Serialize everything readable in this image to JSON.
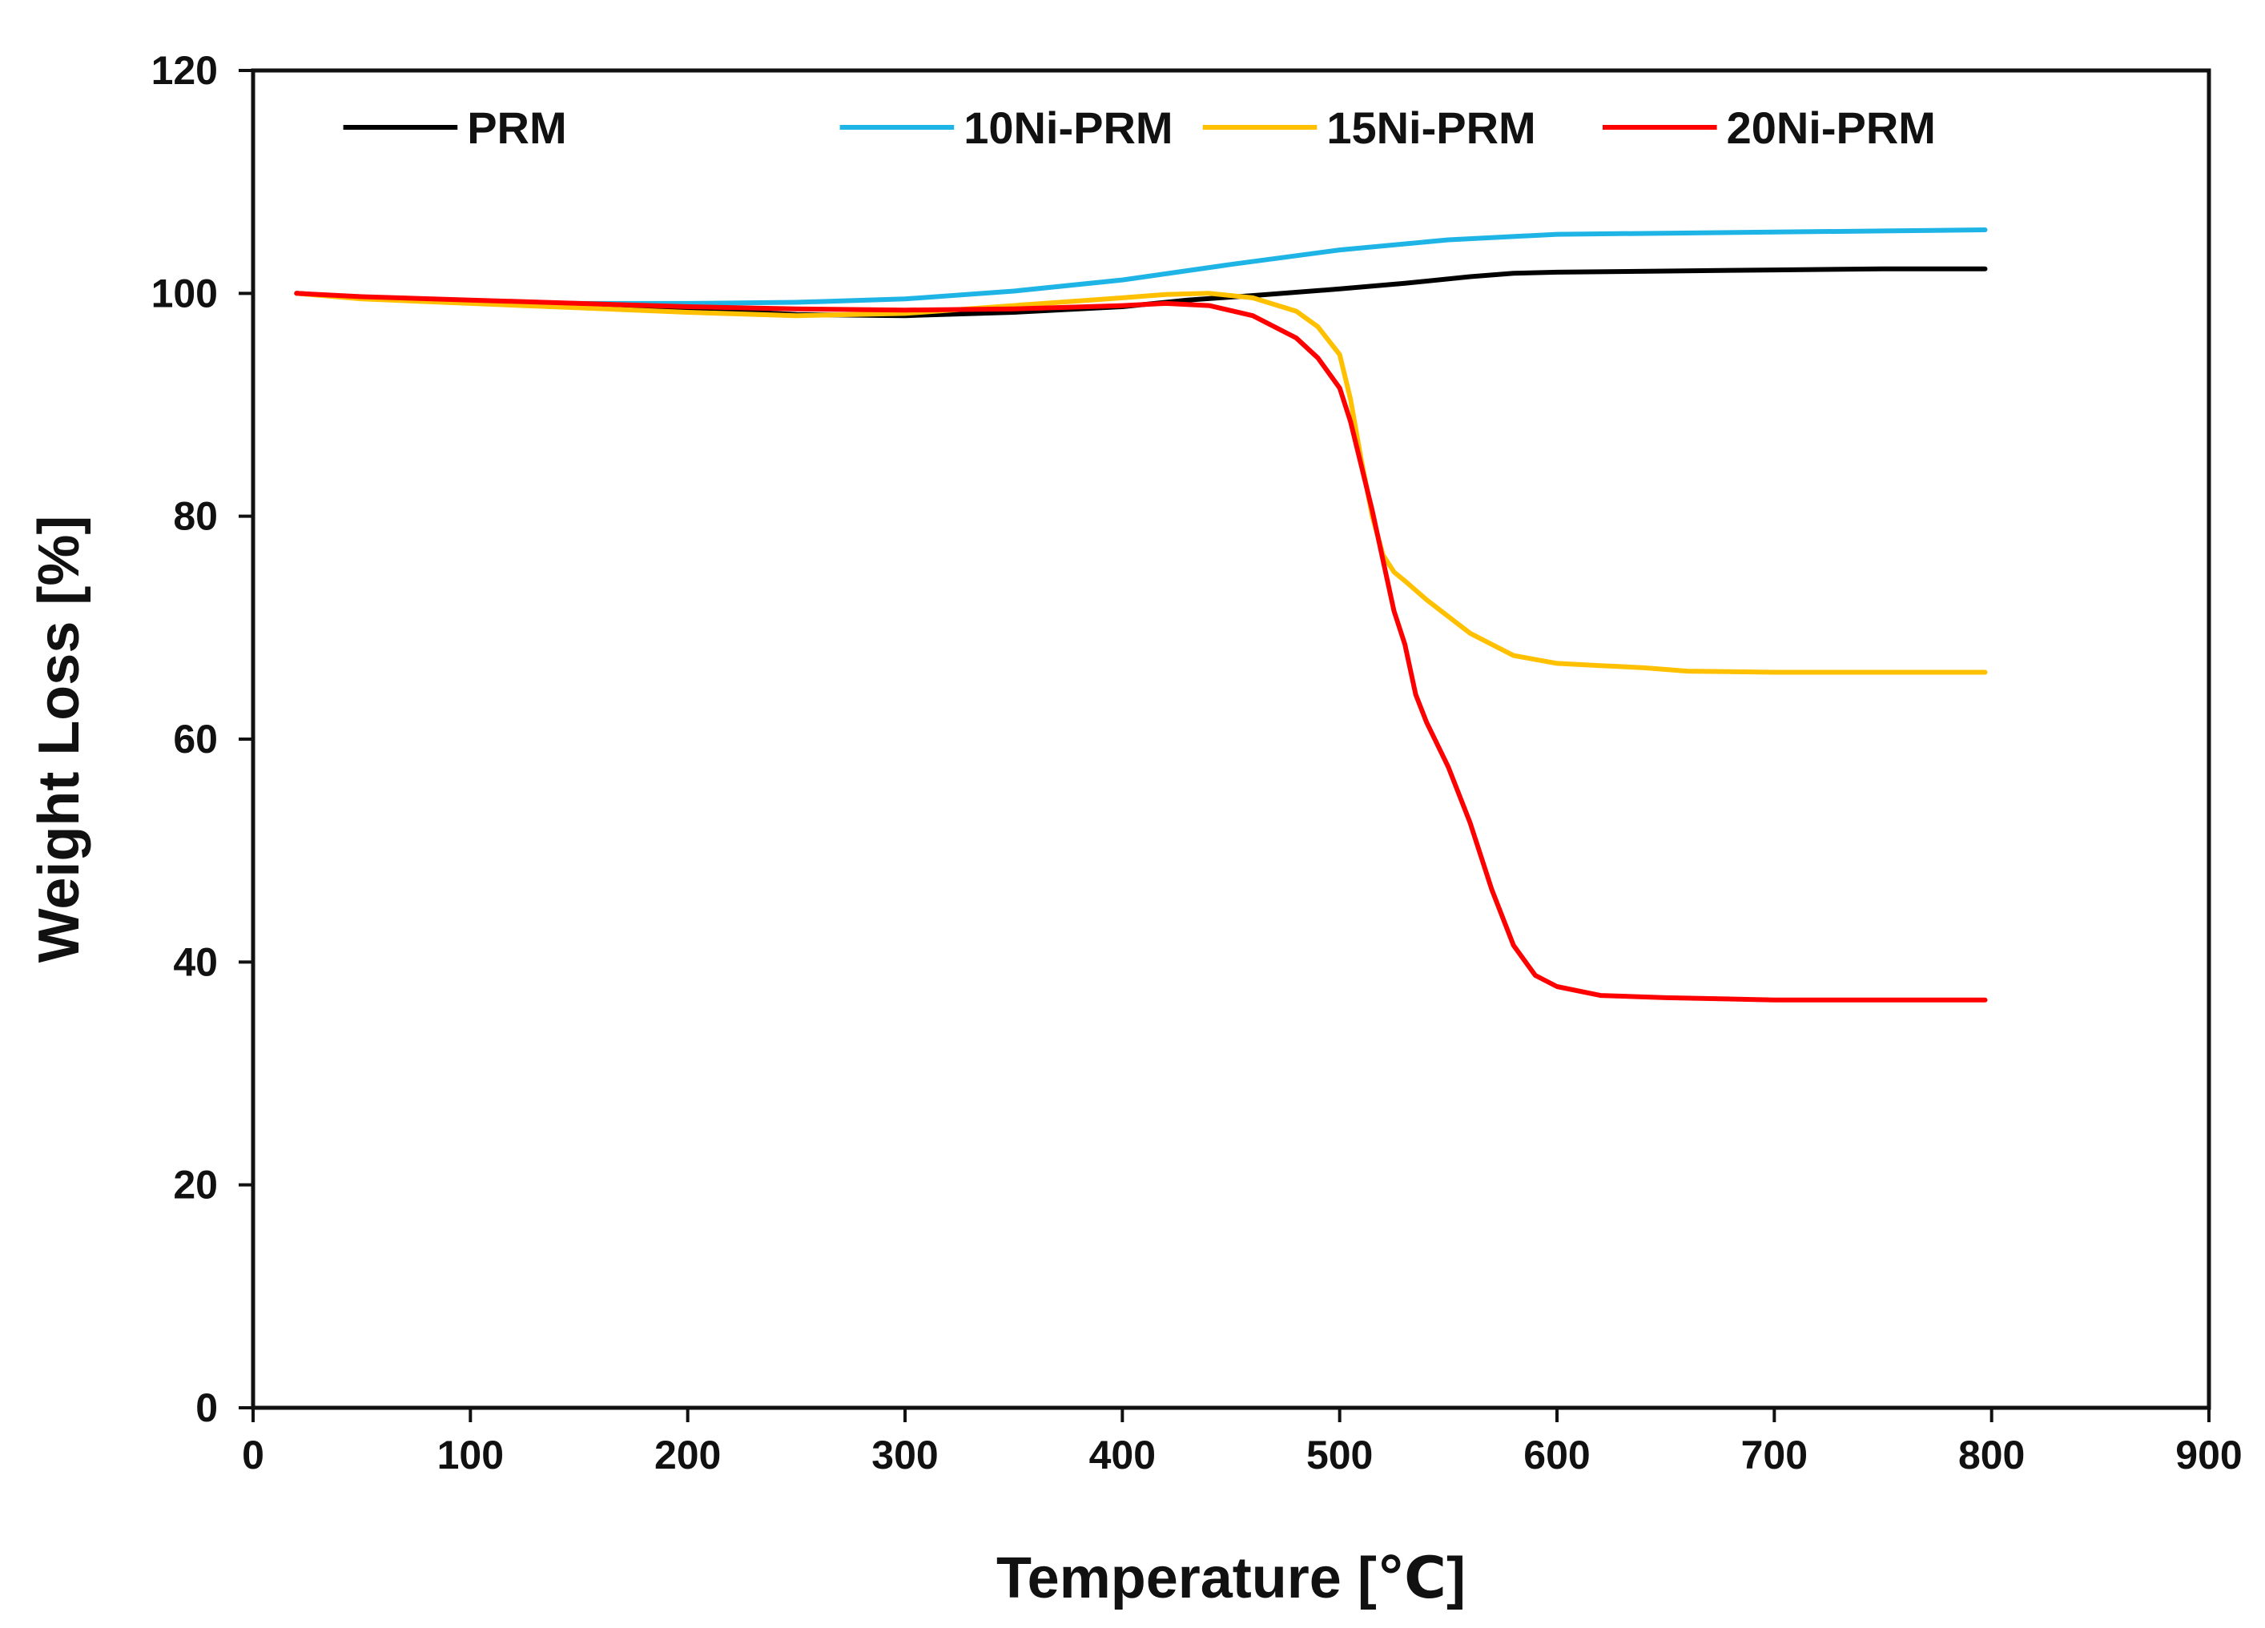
{
  "chart_data": {
    "type": "line",
    "title": "",
    "xlabel": "Temperature [℃]",
    "ylabel": "Weight Loss [%]",
    "xlim": [
      0,
      900
    ],
    "ylim": [
      0,
      120
    ],
    "xticks": [
      0,
      100,
      200,
      300,
      400,
      500,
      600,
      700,
      800,
      900
    ],
    "yticks": [
      0,
      20,
      40,
      60,
      80,
      100,
      120
    ],
    "xtick_labels": [
      "0",
      "100",
      "200",
      "300",
      "400",
      "500",
      "600",
      "700",
      "800",
      "900"
    ],
    "ytick_labels": [
      "0",
      "20",
      "40",
      "60",
      "80",
      "100",
      "120"
    ],
    "grid": false,
    "legend_position": "top",
    "series": [
      {
        "name": "PRM",
        "color": "#000000",
        "x": [
          20,
          50,
          100,
          150,
          200,
          250,
          300,
          350,
          400,
          430,
          460,
          500,
          530,
          560,
          580,
          600,
          650,
          700,
          750,
          797
        ],
        "y": [
          100.0,
          99.6,
          99.3,
          99.0,
          98.6,
          98.1,
          98.0,
          98.3,
          98.8,
          99.4,
          99.8,
          100.4,
          100.9,
          101.5,
          101.8,
          101.9,
          102.0,
          102.1,
          102.2,
          102.2
        ]
      },
      {
        "name": "10Ni-PRM",
        "color": "#1eb4e6",
        "x": [
          20,
          50,
          100,
          150,
          200,
          250,
          300,
          350,
          400,
          450,
          500,
          550,
          600,
          650,
          700,
          750,
          797
        ],
        "y": [
          100.0,
          99.6,
          99.3,
          99.1,
          99.1,
          99.2,
          99.5,
          100.2,
          101.2,
          102.6,
          103.9,
          104.8,
          105.3,
          105.4,
          105.5,
          105.6,
          105.7
        ]
      },
      {
        "name": "15Ni-PRM",
        "color": "#ffc000",
        "x": [
          20,
          50,
          100,
          150,
          200,
          250,
          300,
          350,
          400,
          420,
          440,
          460,
          480,
          490,
          500,
          505,
          510,
          515,
          520,
          525,
          530,
          540,
          560,
          580,
          600,
          620,
          640,
          660,
          700,
          750,
          797
        ],
        "y": [
          100.0,
          99.5,
          99.1,
          98.7,
          98.3,
          98.0,
          98.2,
          98.9,
          99.6,
          99.9,
          100.0,
          99.6,
          98.4,
          97.0,
          94.5,
          90.5,
          85.0,
          80.0,
          76.5,
          75.0,
          74.2,
          72.5,
          69.5,
          67.5,
          66.8,
          66.6,
          66.4,
          66.1,
          66.0,
          66.0,
          66.0
        ]
      },
      {
        "name": "20Ni-PRM",
        "color": "#ff0000",
        "x": [
          20,
          50,
          100,
          150,
          200,
          250,
          300,
          350,
          400,
          420,
          440,
          460,
          480,
          490,
          500,
          505,
          510,
          515,
          520,
          525,
          530,
          535,
          540,
          550,
          560,
          570,
          580,
          590,
          600,
          620,
          650,
          700,
          750,
          797
        ],
        "y": [
          100.0,
          99.7,
          99.4,
          99.1,
          98.8,
          98.6,
          98.5,
          98.6,
          98.9,
          99.1,
          98.9,
          98.0,
          96.0,
          94.2,
          91.5,
          88.5,
          84.5,
          80.5,
          76.0,
          71.5,
          68.5,
          64.0,
          61.5,
          57.5,
          52.5,
          46.5,
          41.5,
          38.8,
          37.8,
          37.0,
          36.8,
          36.6,
          36.6,
          36.6
        ]
      }
    ]
  }
}
